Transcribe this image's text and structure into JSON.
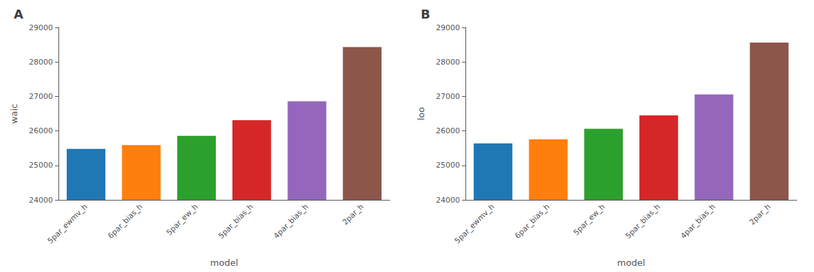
{
  "chart_data": [
    {
      "type": "bar",
      "title": "A",
      "xlabel": "model",
      "ylabel": "waic",
      "categories": [
        "5par_ewmv_h",
        "6par_bias_h",
        "5par_ew_h",
        "5par_bias_h",
        "4par_bias_h",
        "2par_h"
      ],
      "values": [
        25480,
        25590,
        25860,
        26310,
        26860,
        28430
      ],
      "colors": [
        "#1f77b4",
        "#ff7f0e",
        "#2ca02c",
        "#d62728",
        "#9467bd",
        "#8c564b"
      ],
      "ylim": [
        24000,
        29000
      ],
      "yticks": [
        24000,
        25000,
        26000,
        27000,
        28000,
        29000
      ],
      "grid": false
    },
    {
      "type": "bar",
      "title": "B",
      "xlabel": "model",
      "ylabel": "loo",
      "categories": [
        "5par_ewmv_h",
        "6par_bias_h",
        "5par_ew_h",
        "5par_bias_h",
        "4par_bias_h",
        "2par_h"
      ],
      "values": [
        25640,
        25760,
        26060,
        26450,
        27060,
        28560
      ],
      "colors": [
        "#1f77b4",
        "#ff7f0e",
        "#2ca02c",
        "#d62728",
        "#9467bd",
        "#8c564b"
      ],
      "ylim": [
        24000,
        29000
      ],
      "yticks": [
        24000,
        25000,
        26000,
        27000,
        28000,
        29000
      ],
      "grid": false
    }
  ]
}
